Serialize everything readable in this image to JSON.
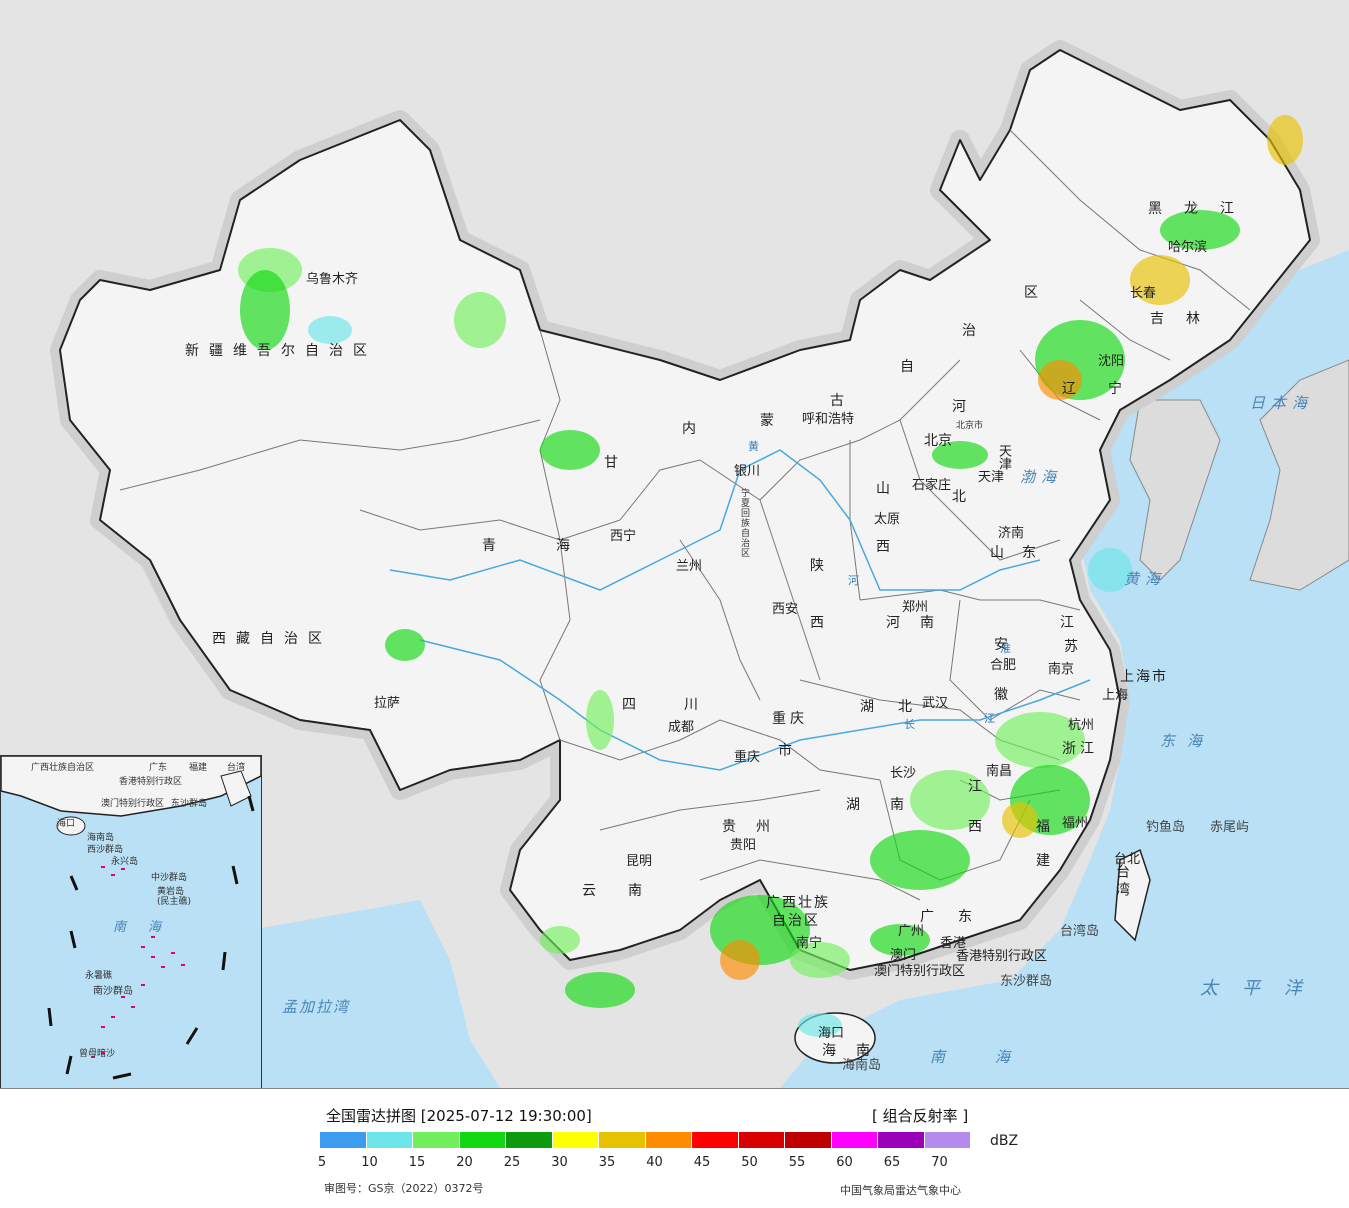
{
  "map": {
    "seas": [
      {
        "text": "日本海"
      },
      {
        "text": "渤海"
      },
      {
        "text": "黄海"
      },
      {
        "text": "东海"
      },
      {
        "text": "南海"
      },
      {
        "text": "太平洋"
      },
      {
        "text": "孟加拉湾"
      }
    ],
    "provinces": [
      {
        "text": "新疆维吾尔自治区"
      },
      {
        "text": "西藏自治区"
      },
      {
        "text": "青海"
      },
      {
        "text": "甘"
      },
      {
        "text": "内"
      },
      {
        "text": "蒙"
      },
      {
        "text": "古"
      },
      {
        "text": "自"
      },
      {
        "text": "治"
      },
      {
        "text": "区"
      },
      {
        "text": "黑龙江"
      },
      {
        "text": "吉林"
      },
      {
        "text": "辽"
      },
      {
        "text": "宁"
      },
      {
        "text": "河"
      },
      {
        "text": "北"
      },
      {
        "text": "山"
      },
      {
        "text": "西"
      },
      {
        "text": "山东"
      },
      {
        "text": "陕"
      },
      {
        "text": "西"
      },
      {
        "text": "河南"
      },
      {
        "text": "江"
      },
      {
        "text": "苏"
      },
      {
        "text": "安"
      },
      {
        "text": "徽"
      },
      {
        "text": "上海市"
      },
      {
        "text": "浙江"
      },
      {
        "text": "湖北"
      },
      {
        "text": "四川"
      },
      {
        "text": "重庆"
      },
      {
        "text": "市"
      },
      {
        "text": "湖南"
      },
      {
        "text": "江"
      },
      {
        "text": "西"
      },
      {
        "text": "福"
      },
      {
        "text": "建"
      },
      {
        "text": "贵州"
      },
      {
        "text": "云南"
      },
      {
        "text": "广西壮族"
      },
      {
        "text": "自治区"
      },
      {
        "text": "广东"
      },
      {
        "text": "海南"
      },
      {
        "text": "台湾"
      },
      {
        "text": "宁夏回族自治区"
      },
      {
        "text": "香港特别行政区"
      },
      {
        "text": "澳门特别行政区"
      },
      {
        "text": "北京市"
      },
      {
        "text": "天津"
      }
    ],
    "cities": [
      {
        "text": "乌鲁木齐"
      },
      {
        "text": "拉萨"
      },
      {
        "text": "西宁"
      },
      {
        "text": "兰州"
      },
      {
        "text": "银川"
      },
      {
        "text": "呼和浩特"
      },
      {
        "text": "哈尔滨"
      },
      {
        "text": "长春"
      },
      {
        "text": "沈阳"
      },
      {
        "text": "北京"
      },
      {
        "text": "天津"
      },
      {
        "text": "石家庄"
      },
      {
        "text": "太原"
      },
      {
        "text": "济南"
      },
      {
        "text": "郑州"
      },
      {
        "text": "西安"
      },
      {
        "text": "合肥"
      },
      {
        "text": "南京"
      },
      {
        "text": "上海"
      },
      {
        "text": "杭州"
      },
      {
        "text": "武汉"
      },
      {
        "text": "成都"
      },
      {
        "text": "重庆"
      },
      {
        "text": "长沙"
      },
      {
        "text": "南昌"
      },
      {
        "text": "福州"
      },
      {
        "text": "贵阳"
      },
      {
        "text": "昆明"
      },
      {
        "text": "南宁"
      },
      {
        "text": "广州"
      },
      {
        "text": "香港"
      },
      {
        "text": "澳门"
      },
      {
        "text": "海口"
      },
      {
        "text": "台北"
      }
    ],
    "islands": [
      {
        "text": "钓鱼岛"
      },
      {
        "text": "赤尾屿"
      },
      {
        "text": "台湾岛"
      },
      {
        "text": "东沙群岛"
      },
      {
        "text": "海南岛"
      }
    ],
    "rivers": [
      {
        "text": "黄"
      },
      {
        "text": "河"
      },
      {
        "text": "长"
      },
      {
        "text": "江"
      },
      {
        "text": "淮"
      }
    ]
  },
  "inset": {
    "labels": [
      {
        "text": "广西壮族自治区"
      },
      {
        "text": "广东"
      },
      {
        "text": "福建"
      },
      {
        "text": "台湾"
      },
      {
        "text": "香港特别行政区"
      },
      {
        "text": "澳门特别行政区"
      },
      {
        "text": "东沙群岛"
      },
      {
        "text": "海口"
      },
      {
        "text": "海南岛"
      },
      {
        "text": "西沙群岛"
      },
      {
        "text": "永兴岛"
      },
      {
        "text": "中沙群岛"
      },
      {
        "text": "黄岩岛"
      },
      {
        "text": "(民主礁)"
      },
      {
        "text": "南海"
      },
      {
        "text": "永暑礁"
      },
      {
        "text": "南沙群岛"
      },
      {
        "text": "曾母暗沙"
      }
    ]
  },
  "legend": {
    "title": "全国雷达拼图 [2025-07-12 19:30:00]",
    "product": "[ 组合反射率 ]",
    "unit": "dBZ",
    "colors": [
      "#3c9cf0",
      "#6ce6ea",
      "#72f05c",
      "#12d812",
      "#0e9a0e",
      "#ffff00",
      "#e8c200",
      "#ff8c00",
      "#ff0000",
      "#d80000",
      "#c00000",
      "#ff00ff",
      "#9a00b8",
      "#b48cf0"
    ],
    "ticks": [
      "5",
      "10",
      "15",
      "20",
      "25",
      "30",
      "35",
      "40",
      "45",
      "50",
      "55",
      "60",
      "65",
      "70"
    ],
    "approval": "审图号：GS京（2022）0372号",
    "source": "中国气象局雷达气象中心"
  }
}
